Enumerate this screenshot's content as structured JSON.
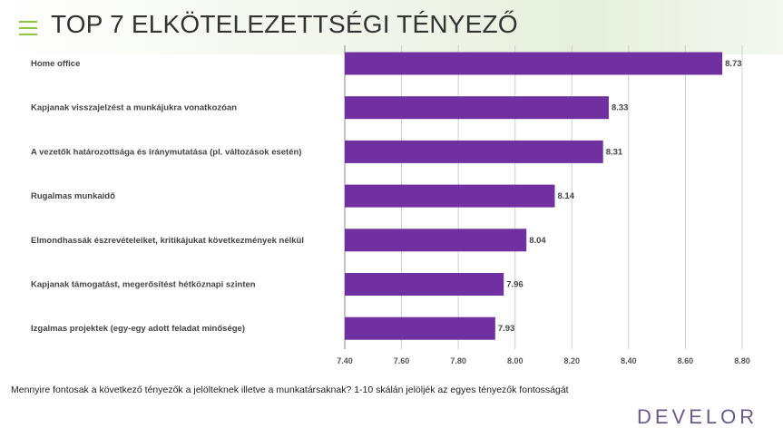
{
  "slide": {
    "title": "TOP 7 ELKÖTELEZETTSÉGI TÉNYEZŐ",
    "menu_icon": "menu-lines-icon",
    "accent_color": "#8dc63f"
  },
  "footnote": "Mennyire fontosak a következő tényezők a jelölteknek illetve a munkatársaknak? 1-10 skálán jelöljék az egyes tényezők fontosságát",
  "logo": "DEVELOR",
  "chart_data": {
    "type": "bar",
    "orientation": "horizontal",
    "categories": [
      "Home office",
      "Kapjanak visszajelzést a munkájukra vonatkozóan",
      "A vezetők határozottsága és iránymutatása (pl. változások esetén)",
      "Rugalmas munkaidő",
      "Elmondhassák észrevételeiket, kritikájukat következmények nélkül",
      "Kapjanak támogatást, megerősítést hétköznapi szinten",
      "Izgalmas projektek (egy-egy adott feladat minősége)"
    ],
    "values": [
      8.73,
      8.33,
      8.31,
      8.14,
      8.04,
      7.96,
      7.93
    ],
    "value_labels": [
      "8.73",
      "8.33",
      "8.31",
      "8.14",
      "8.04",
      "7.96",
      "7.93"
    ],
    "xlim": [
      7.4,
      8.8
    ],
    "xticks": [
      "7.40",
      "7.60",
      "7.80",
      "8.00",
      "8.20",
      "8.40",
      "8.60",
      "8.80"
    ],
    "bar_color": "#7030a0",
    "grid": true
  }
}
